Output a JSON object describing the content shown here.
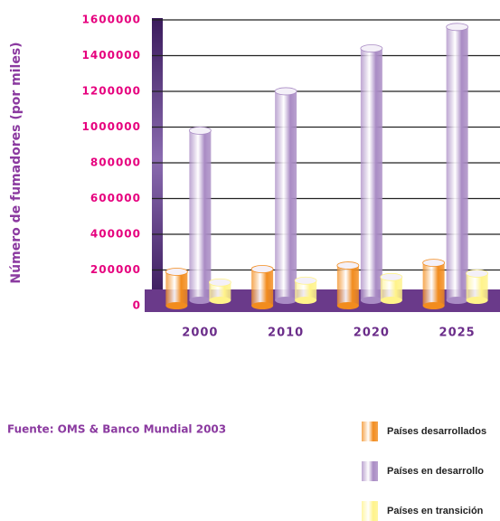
{
  "chart_data": {
    "type": "bar",
    "ylabel": "Número de fumadores (por miles)",
    "source": "Fuente: OMS & Banco Mundial 2003",
    "categories": [
      "2000",
      "2010",
      "2020",
      "2025"
    ],
    "series": [
      {
        "name": "Países desarrollados",
        "color": "#f28c1e",
        "values": [
          190000,
          205000,
          225000,
          240000
        ]
      },
      {
        "name": "Países en desarrollo",
        "color": "#a98bc4",
        "values": [
          950000,
          1170000,
          1410000,
          1530000
        ]
      },
      {
        "name": "Países en transición",
        "color": "#fff38a",
        "values": [
          100000,
          110000,
          130000,
          150000
        ]
      }
    ],
    "ylim": [
      0,
      1600000
    ],
    "yticks": [
      0,
      200000,
      400000,
      600000,
      800000,
      1000000,
      1200000,
      1400000,
      1600000
    ],
    "grid": true
  }
}
